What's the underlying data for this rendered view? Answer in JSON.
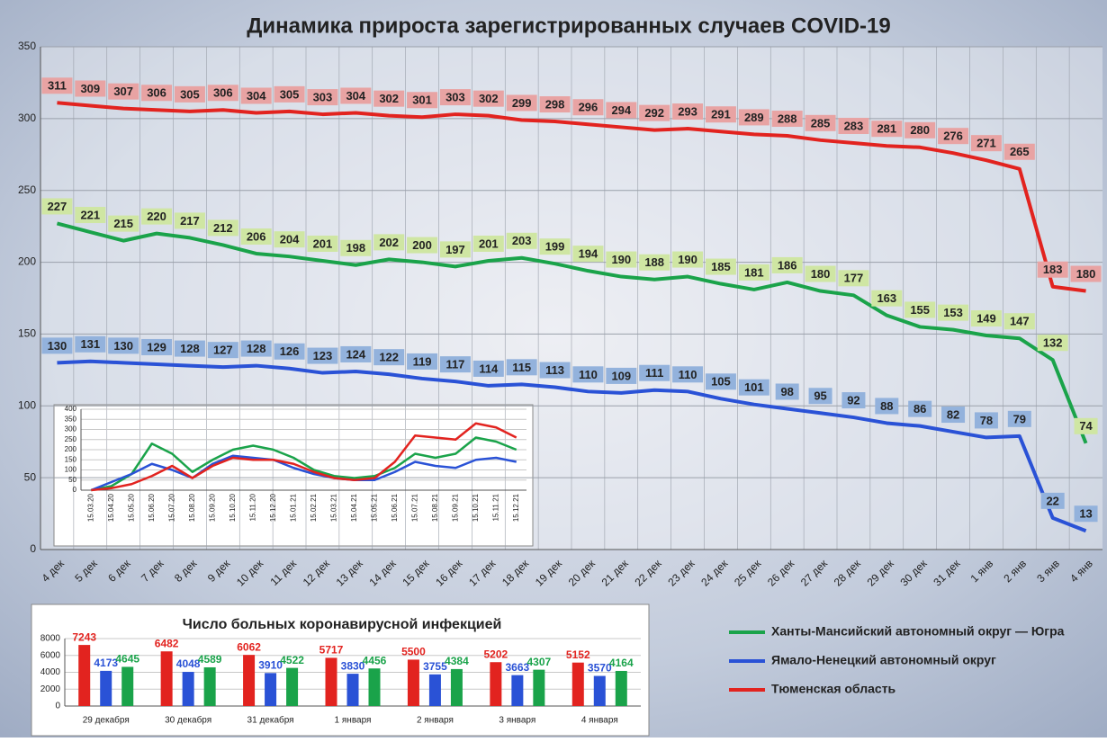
{
  "chart_data": [
    {
      "type": "line",
      "title": "Динамика прироста зарегистрированных случаев COVID-19",
      "categories": [
        "4 дек",
        "5 дек",
        "6 дек",
        "7 дек",
        "8 дек",
        "9 дек",
        "10 дек",
        "11 дек",
        "12 дек",
        "13 дек",
        "14 дек",
        "15 дек",
        "16 дек",
        "17 дек",
        "18 дек",
        "19 дек",
        "20 дек",
        "21 дек",
        "22 дек",
        "23 дек",
        "24 дек",
        "25 дек",
        "26 дек",
        "27 дек",
        "28 дек",
        "29 дек",
        "30 дек",
        "31 дек",
        "1 янв",
        "2 янв",
        "3 янв",
        "4 янв"
      ],
      "series": [
        {
          "name": "Ханты-Мансийский автономный округ — Югра",
          "color": "#1aa34a",
          "label_color": "#cfe6a3",
          "values": [
            227,
            221,
            215,
            220,
            217,
            212,
            206,
            204,
            201,
            198,
            202,
            200,
            197,
            201,
            203,
            199,
            194,
            190,
            188,
            190,
            185,
            181,
            186,
            180,
            177,
            163,
            155,
            153,
            149,
            147,
            132,
            74
          ]
        },
        {
          "name": "Ямало-Ненецкий автономный округ",
          "color": "#2a52d6",
          "label_color": "#93b2dc",
          "values": [
            130,
            131,
            130,
            129,
            128,
            127,
            128,
            126,
            123,
            124,
            122,
            119,
            117,
            114,
            115,
            113,
            110,
            109,
            111,
            110,
            105,
            101,
            98,
            95,
            92,
            88,
            86,
            82,
            78,
            79,
            22,
            13
          ]
        },
        {
          "name": "Тюменская область",
          "color": "#e2231f",
          "label_color": "#e8a3a3",
          "values": [
            311,
            309,
            307,
            306,
            305,
            306,
            304,
            305,
            303,
            304,
            302,
            301,
            303,
            302,
            299,
            298,
            296,
            294,
            292,
            293,
            291,
            289,
            288,
            285,
            283,
            281,
            280,
            276,
            271,
            265,
            183,
            180
          ]
        }
      ],
      "ylim": [
        0,
        350
      ],
      "yticks": [
        0,
        50,
        100,
        150,
        200,
        250,
        300,
        350
      ],
      "grid": true
    },
    {
      "type": "line",
      "categories": [
        "15.03.20",
        "15.04.20",
        "15.05.20",
        "15.06.20",
        "15.07.20",
        "15.08.20",
        "15.09.20",
        "15.10.20",
        "15.11.20",
        "15.12.20",
        "15.01.21",
        "15.02.21",
        "15.03.21",
        "15.04.21",
        "15.05.21",
        "15.06.21",
        "15.07.21",
        "15.08.21",
        "15.09.21",
        "15.10.21",
        "15.11.21",
        "15.12.21"
      ],
      "series": [
        {
          "color": "#1aa34a",
          "values": [
            0,
            20,
            80,
            230,
            180,
            90,
            150,
            200,
            220,
            200,
            160,
            100,
            70,
            60,
            70,
            110,
            180,
            160,
            180,
            260,
            240,
            200
          ]
        },
        {
          "color": "#2a52d6",
          "values": [
            0,
            40,
            80,
            130,
            100,
            60,
            130,
            170,
            160,
            150,
            110,
            80,
            60,
            50,
            50,
            90,
            140,
            120,
            110,
            150,
            160,
            140
          ]
        },
        {
          "color": "#e2231f",
          "values": [
            0,
            10,
            30,
            70,
            120,
            60,
            120,
            160,
            150,
            150,
            130,
            90,
            60,
            50,
            60,
            140,
            270,
            260,
            250,
            330,
            310,
            260
          ]
        }
      ],
      "ylim": [
        0,
        400
      ],
      "yticks": [
        0,
        50,
        100,
        150,
        200,
        250,
        300,
        350,
        400
      ],
      "grid": true
    },
    {
      "type": "bar",
      "title": "Число больных  коронавирусной  инфекцией",
      "categories": [
        "29 декабря",
        "30 декабря",
        "31 декабря",
        "1 января",
        "2 января",
        "3 января",
        "4 января"
      ],
      "series": [
        {
          "color": "#e2231f",
          "values": [
            7243,
            6482,
            6062,
            5717,
            5500,
            5202,
            5152
          ]
        },
        {
          "color": "#2a52d6",
          "values": [
            4173,
            4048,
            3910,
            3830,
            3755,
            3663,
            3570
          ]
        },
        {
          "color": "#1aa34a",
          "values": [
            4645,
            4589,
            4522,
            4456,
            4384,
            4307,
            4164
          ]
        }
      ],
      "ylim": [
        0,
        8000
      ],
      "yticks": [
        0,
        2000,
        4000,
        6000,
        8000
      ],
      "grid": true
    }
  ]
}
